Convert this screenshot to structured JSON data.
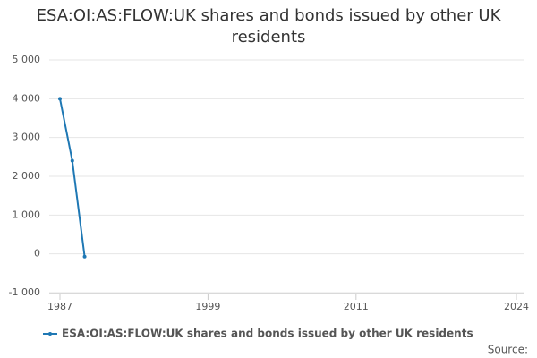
{
  "chart_data": {
    "type": "line",
    "title": "ESA:OI:AS:FLOW:UK shares and bonds issued by other UK residents",
    "x": [
      1987,
      1988,
      1989
    ],
    "series": [
      {
        "name": "ESA:OI:AS:FLOW:UK shares and bonds issued by other UK residents",
        "color": "#1f78b4",
        "values": [
          4000,
          2400,
          -70
        ]
      }
    ],
    "xlim": [
      1987,
      2024
    ],
    "xticks": [
      1987,
      1999,
      2011,
      2024
    ],
    "ylim": [
      -1000,
      5000
    ],
    "yticks": [
      {
        "value": -1000,
        "label": "-1 000"
      },
      0,
      {
        "value": 1000,
        "label": "1 000"
      },
      {
        "value": 2000,
        "label": "2 000"
      },
      {
        "value": 3000,
        "label": "3 000"
      },
      {
        "value": 4000,
        "label": "4 000"
      },
      {
        "value": 5000,
        "label": "5 000"
      }
    ],
    "grid": true,
    "source": "Source:"
  }
}
